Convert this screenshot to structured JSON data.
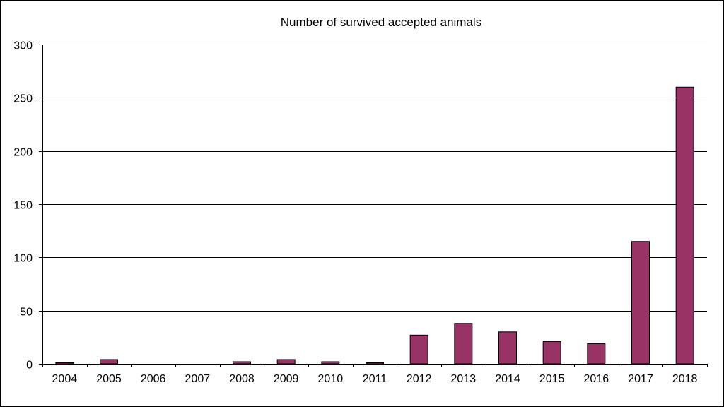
{
  "chart_data": {
    "type": "bar",
    "title": "Number of survived accepted animals",
    "xlabel": "",
    "ylabel": "",
    "categories": [
      "2004",
      "2005",
      "2006",
      "2007",
      "2008",
      "2009",
      "2010",
      "2011",
      "2012",
      "2013",
      "2014",
      "2015",
      "2016",
      "2017",
      "2018"
    ],
    "values": [
      1,
      4,
      0,
      0,
      2,
      4,
      2,
      1,
      27,
      38,
      30,
      21,
      19,
      115,
      260
    ],
    "ylim": [
      0,
      300
    ],
    "yticks": [
      "0",
      "50",
      "100",
      "150",
      "200",
      "250",
      "300"
    ],
    "ytick_values": [
      0,
      50,
      100,
      150,
      200,
      250,
      300
    ],
    "grid": true,
    "legend": "none",
    "bar_color": "#993366"
  }
}
